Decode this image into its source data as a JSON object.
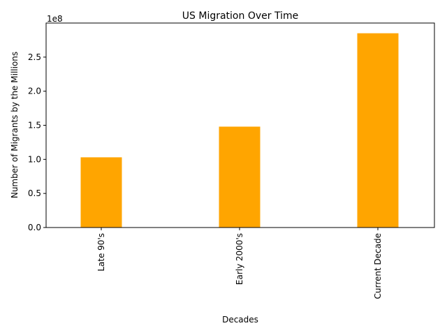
{
  "chart_data": {
    "type": "bar",
    "title": "US Migration Over Time",
    "xlabel": "Decades",
    "ylabel": "Number of Migrants by the Millions",
    "offset_label": "1e8",
    "categories": [
      "Late 90's",
      "Early 2000's",
      "Current Decade"
    ],
    "values": [
      103000000,
      148000000,
      285000000
    ],
    "ylim": [
      0,
      300000000
    ],
    "yticks": [
      0,
      50000000,
      100000000,
      150000000,
      200000000,
      250000000
    ],
    "ytick_labels": [
      "0.0",
      "0.5",
      "1.0",
      "1.5",
      "2.0",
      "2.5"
    ],
    "grid": false,
    "bar_color": "#ffa500"
  }
}
